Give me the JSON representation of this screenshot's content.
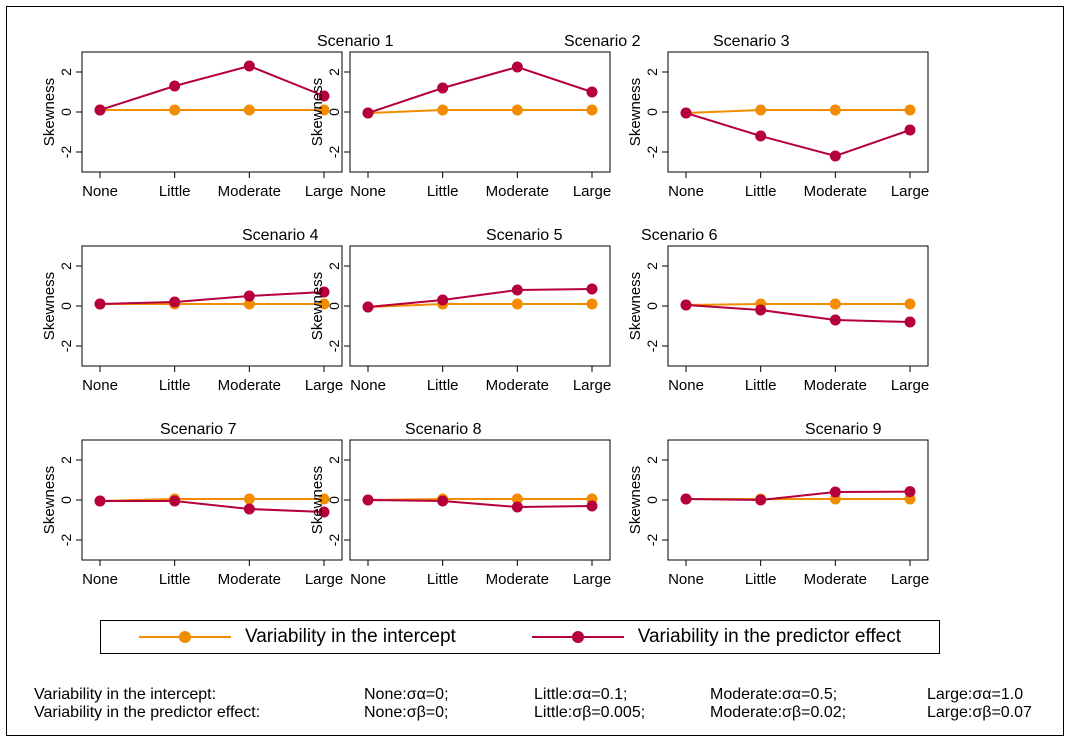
{
  "colors": {
    "intercept": "#F28C00",
    "predictor": "#B5003C",
    "axis": "#000000"
  },
  "chart_data": {
    "type": "line",
    "layout": "3x3 grid of small multiples",
    "categories": [
      "None",
      "Little",
      "Moderate",
      "Large"
    ],
    "ylabel": "Skewness",
    "ylim": [
      -3,
      3
    ],
    "yticks": [
      "2",
      "0",
      "-2"
    ],
    "grid": false,
    "legend_position": "bottom",
    "legend": [
      "Variability in the intercept",
      "Variability in the predictor effect"
    ],
    "panels": [
      {
        "title": "Scenario 1",
        "series": [
          {
            "name": "Variability in the intercept",
            "values": [
              0.1,
              0.1,
              0.1,
              0.1
            ]
          },
          {
            "name": "Variability in the predictor effect",
            "values": [
              0.1,
              1.3,
              2.3,
              0.8
            ]
          }
        ]
      },
      {
        "title": "Scenario 2",
        "series": [
          {
            "name": "Variability in the intercept",
            "values": [
              -0.05,
              0.1,
              0.1,
              0.1
            ]
          },
          {
            "name": "Variability in the predictor effect",
            "values": [
              -0.05,
              1.2,
              2.25,
              1.0
            ]
          }
        ]
      },
      {
        "title": "Scenario 3",
        "series": [
          {
            "name": "Variability in the intercept",
            "values": [
              -0.05,
              0.1,
              0.1,
              0.1
            ]
          },
          {
            "name": "Variability in the predictor effect",
            "values": [
              -0.05,
              -1.2,
              -2.2,
              -0.9
            ]
          }
        ]
      },
      {
        "title": "Scenario 4",
        "series": [
          {
            "name": "Variability in the intercept",
            "values": [
              0.1,
              0.1,
              0.1,
              0.1
            ]
          },
          {
            "name": "Variability in the predictor effect",
            "values": [
              0.1,
              0.2,
              0.5,
              0.7
            ]
          }
        ]
      },
      {
        "title": "Scenario 5",
        "series": [
          {
            "name": "Variability in the intercept",
            "values": [
              -0.05,
              0.1,
              0.1,
              0.1
            ]
          },
          {
            "name": "Variability in the predictor effect",
            "values": [
              -0.05,
              0.3,
              0.8,
              0.85
            ]
          }
        ]
      },
      {
        "title": "Scenario 6",
        "series": [
          {
            "name": "Variability in the intercept",
            "values": [
              0.05,
              0.1,
              0.1,
              0.1
            ]
          },
          {
            "name": "Variability in the predictor effect",
            "values": [
              0.05,
              -0.2,
              -0.7,
              -0.8
            ]
          }
        ]
      },
      {
        "title": "Scenario 7",
        "series": [
          {
            "name": "Variability in the intercept",
            "values": [
              -0.05,
              0.05,
              0.05,
              0.05
            ]
          },
          {
            "name": "Variability in the predictor effect",
            "values": [
              -0.05,
              -0.05,
              -0.45,
              -0.6
            ]
          }
        ]
      },
      {
        "title": "Scenario 8",
        "series": [
          {
            "name": "Variability in the intercept",
            "values": [
              0.0,
              0.05,
              0.05,
              0.05
            ]
          },
          {
            "name": "Variability in the predictor effect",
            "values": [
              0.0,
              -0.05,
              -0.35,
              -0.3
            ]
          }
        ]
      },
      {
        "title": "Scenario 9",
        "series": [
          {
            "name": "Variability in the intercept",
            "values": [
              0.05,
              0.05,
              0.05,
              0.05
            ]
          },
          {
            "name": "Variability in the predictor effect",
            "values": [
              0.05,
              0.0,
              0.4,
              0.42
            ]
          }
        ]
      }
    ]
  },
  "footnotes": [
    {
      "label": "Variability in the intercept:",
      "levels": [
        [
          "None:",
          "σα=0;"
        ],
        [
          "Little:",
          "σα=0.1;"
        ],
        [
          "Moderate:",
          "σα=0.5;"
        ],
        [
          "Large:",
          "σα=1.0"
        ]
      ]
    },
    {
      "label": "Variability in the predictor effect:",
      "levels": [
        [
          "None:",
          "σβ=0;"
        ],
        [
          "Little:",
          "σβ=0.005;"
        ],
        [
          "Moderate:",
          "σβ=0.02;"
        ],
        [
          "Large:",
          "σβ=0.07"
        ]
      ]
    }
  ]
}
